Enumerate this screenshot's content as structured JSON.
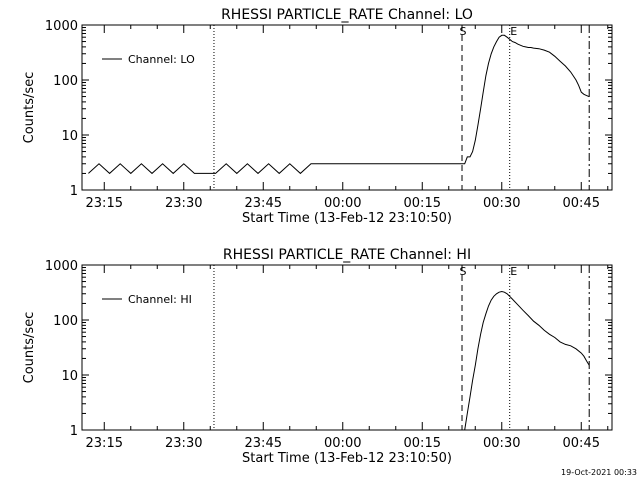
{
  "footer_timestamp": "19-Oct-2021 00:33",
  "x_ticks": [
    "23:15",
    "23:30",
    "23:45",
    "00:00",
    "00:15",
    "00:30",
    "00:45"
  ],
  "x_tick_minutes": [
    -45,
    -30,
    -15,
    0,
    15,
    30,
    45
  ],
  "y_ticks": [
    "1",
    "10",
    "100",
    "1000"
  ],
  "markers": {
    "dotted_left_min": -24.3,
    "start": {
      "label": "S",
      "min": 22.5
    },
    "end": {
      "label": "E",
      "min": 31.5
    },
    "dashdot_min": 46.5
  },
  "chart_data": [
    {
      "type": "line",
      "title": "RHESSI PARTICLE_RATE Channel: LO",
      "xlabel": "Start Time (13-Feb-12 23:10:50)",
      "ylabel": "Counts/sec",
      "x_unit": "minutes relative to 00:00 (13-14 Feb 2012)",
      "xlim": [
        -49.2,
        50.8
      ],
      "ylim": [
        1,
        1000
      ],
      "yscale": "log",
      "legend_position": "top-left",
      "series": [
        {
          "name": "Channel: LO",
          "x": [
            -48.0,
            -46.0,
            -44.0,
            -42.0,
            -40.0,
            -38.0,
            -36.0,
            -34.0,
            -32.0,
            -30.0,
            -28.0,
            -26.0,
            -24.0,
            -22.0,
            -20.0,
            -18.0,
            -16.0,
            -14.0,
            -12.0,
            -10.0,
            -8.0,
            -6.0,
            -4.0,
            -2.0,
            0.0,
            2.0,
            4.0,
            6.0,
            8.0,
            10.0,
            12.0,
            14.0,
            16.0,
            18.0,
            19.5,
            20.5,
            21.5,
            22.0,
            22.5,
            23.0,
            23.5,
            24.0,
            24.5,
            25.0,
            25.5,
            26.0,
            26.5,
            27.0,
            27.5,
            28.0,
            28.5,
            29.0,
            29.5,
            30.0,
            30.5,
            31.0,
            31.5,
            32.0,
            32.5,
            33.0,
            33.5,
            34.0,
            34.5,
            35.0,
            35.5,
            36.0,
            37.0,
            38.0,
            39.0,
            40.0,
            41.0,
            42.0,
            43.0,
            44.0,
            44.5,
            45.0,
            45.5,
            46.0,
            46.5
          ],
          "y": [
            2,
            3,
            2,
            3,
            2,
            3,
            2,
            3,
            2,
            3,
            2,
            2,
            2,
            3,
            2,
            3,
            2,
            3,
            2,
            3,
            2,
            3,
            3,
            3,
            3,
            3,
            3,
            3,
            3,
            3,
            3,
            3,
            3,
            3,
            3,
            3,
            3,
            3,
            3,
            3,
            4,
            4,
            5,
            8,
            15,
            30,
            60,
            120,
            200,
            300,
            400,
            500,
            600,
            650,
            650,
            600,
            550,
            500,
            480,
            450,
            430,
            410,
            400,
            390,
            390,
            380,
            370,
            350,
            320,
            270,
            220,
            180,
            140,
            100,
            80,
            60,
            55,
            52,
            50
          ]
        }
      ]
    },
    {
      "type": "line",
      "title": "RHESSI PARTICLE_RATE Channel: HI",
      "xlabel": "Start Time (13-Feb-12 23:10:50)",
      "ylabel": "Counts/sec",
      "x_unit": "minutes relative to 00:00 (13-14 Feb 2012)",
      "xlim": [
        -49.2,
        50.8
      ],
      "ylim": [
        1,
        1000
      ],
      "yscale": "log",
      "legend_position": "top-left",
      "series": [
        {
          "name": "Channel: HI",
          "x": [
            23.0,
            23.5,
            24.0,
            24.5,
            25.0,
            25.5,
            26.0,
            26.5,
            27.0,
            27.5,
            28.0,
            28.5,
            29.0,
            29.5,
            30.0,
            30.5,
            31.0,
            31.5,
            32.0,
            33.0,
            34.0,
            35.0,
            36.0,
            37.0,
            38.0,
            39.0,
            40.0,
            41.0,
            42.0,
            43.0,
            44.0,
            45.0,
            45.5,
            46.0,
            46.5
          ],
          "y": [
            1.0,
            2.0,
            4,
            8,
            15,
            30,
            55,
            90,
            130,
            180,
            230,
            270,
            300,
            320,
            330,
            320,
            300,
            270,
            240,
            190,
            150,
            120,
            95,
            80,
            65,
            55,
            48,
            40,
            36,
            34,
            30,
            25,
            22,
            18,
            15
          ]
        }
      ]
    }
  ]
}
